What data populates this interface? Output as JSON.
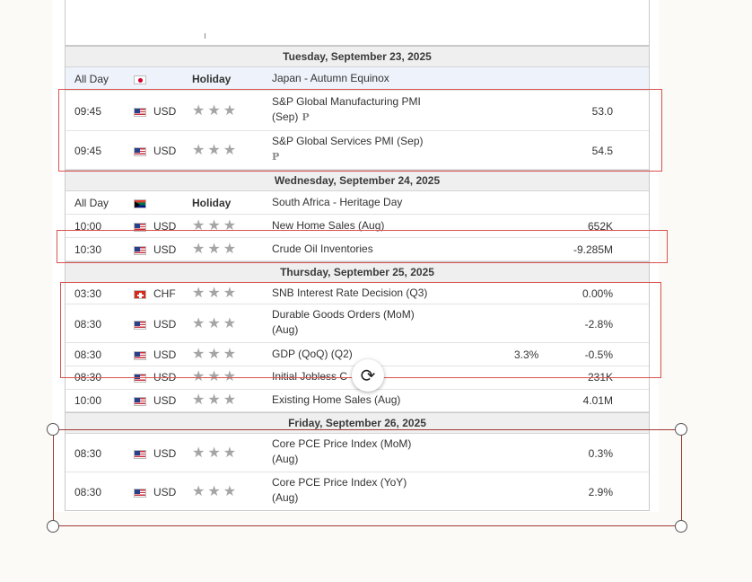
{
  "days": [
    {
      "label": "Tuesday, September 23, 2025",
      "rows": [
        {
          "time": "All Day",
          "flag": "jp",
          "holiday": "Holiday",
          "event": "Japan - Autumn Equinox",
          "forecast": "",
          "actual": "",
          "type": "holiday"
        },
        {
          "time": "09:45",
          "flag": "us",
          "currency": "USD",
          "event": "S&P Global Manufacturing PMI (Sep)",
          "prelim": "P",
          "forecast": "",
          "actual": "53.0"
        },
        {
          "time": "09:45",
          "flag": "us",
          "currency": "USD",
          "event": "S&P Global Services PMI (Sep)",
          "prelim": "P",
          "forecast": "",
          "actual": "54.5"
        }
      ]
    },
    {
      "label": "Wednesday, September 24, 2025",
      "rows": [
        {
          "time": "All Day",
          "flag": "za",
          "holiday": "Holiday",
          "event": "South Africa - Heritage Day",
          "forecast": "",
          "actual": "",
          "type": "holiday"
        },
        {
          "time": "10:00",
          "flag": "us",
          "currency": "USD",
          "event": "New Home Sales (Aug)",
          "forecast": "",
          "actual": "652K"
        },
        {
          "time": "10:30",
          "flag": "us",
          "currency": "USD",
          "event": "Crude Oil Inventories",
          "forecast": "",
          "actual": "-9.285M"
        }
      ]
    },
    {
      "label": "Thursday, September 25, 2025",
      "rows": [
        {
          "time": "03:30",
          "flag": "ch",
          "currency": "CHF",
          "event": "SNB Interest Rate Decision (Q3)",
          "forecast": "",
          "actual": "0.00%"
        },
        {
          "time": "08:30",
          "flag": "us",
          "currency": "USD",
          "event": "Durable Goods Orders (MoM) (Aug)",
          "forecast": "",
          "actual": "-2.8%"
        },
        {
          "time": "08:30",
          "flag": "us",
          "currency": "USD",
          "event": "GDP (QoQ) (Q2)",
          "forecast": "3.3%",
          "actual": "-0.5%"
        },
        {
          "time": "08:30",
          "flag": "us",
          "currency": "USD",
          "event": "Initial Jobless C",
          "forecast": "",
          "actual": "231K"
        },
        {
          "time": "10:00",
          "flag": "us",
          "currency": "USD",
          "event": "Existing Home Sales (Aug)",
          "forecast": "",
          "actual": "4.01M"
        }
      ]
    },
    {
      "label": "Friday, September 26, 2025",
      "rows": [
        {
          "time": "08:30",
          "flag": "us",
          "currency": "USD",
          "event": "Core PCE Price Index (MoM) (Aug)",
          "forecast": "",
          "actual": "0.3%"
        },
        {
          "time": "08:30",
          "flag": "us",
          "currency": "USD",
          "event": "Core PCE Price Index (YoY) (Aug)",
          "forecast": "",
          "actual": "2.9%"
        }
      ]
    }
  ],
  "stars": "★★★",
  "colors": {
    "highlight": "#d9534f",
    "selection": "#a33a35"
  },
  "icons": {
    "rotate": "rotate-icon"
  }
}
